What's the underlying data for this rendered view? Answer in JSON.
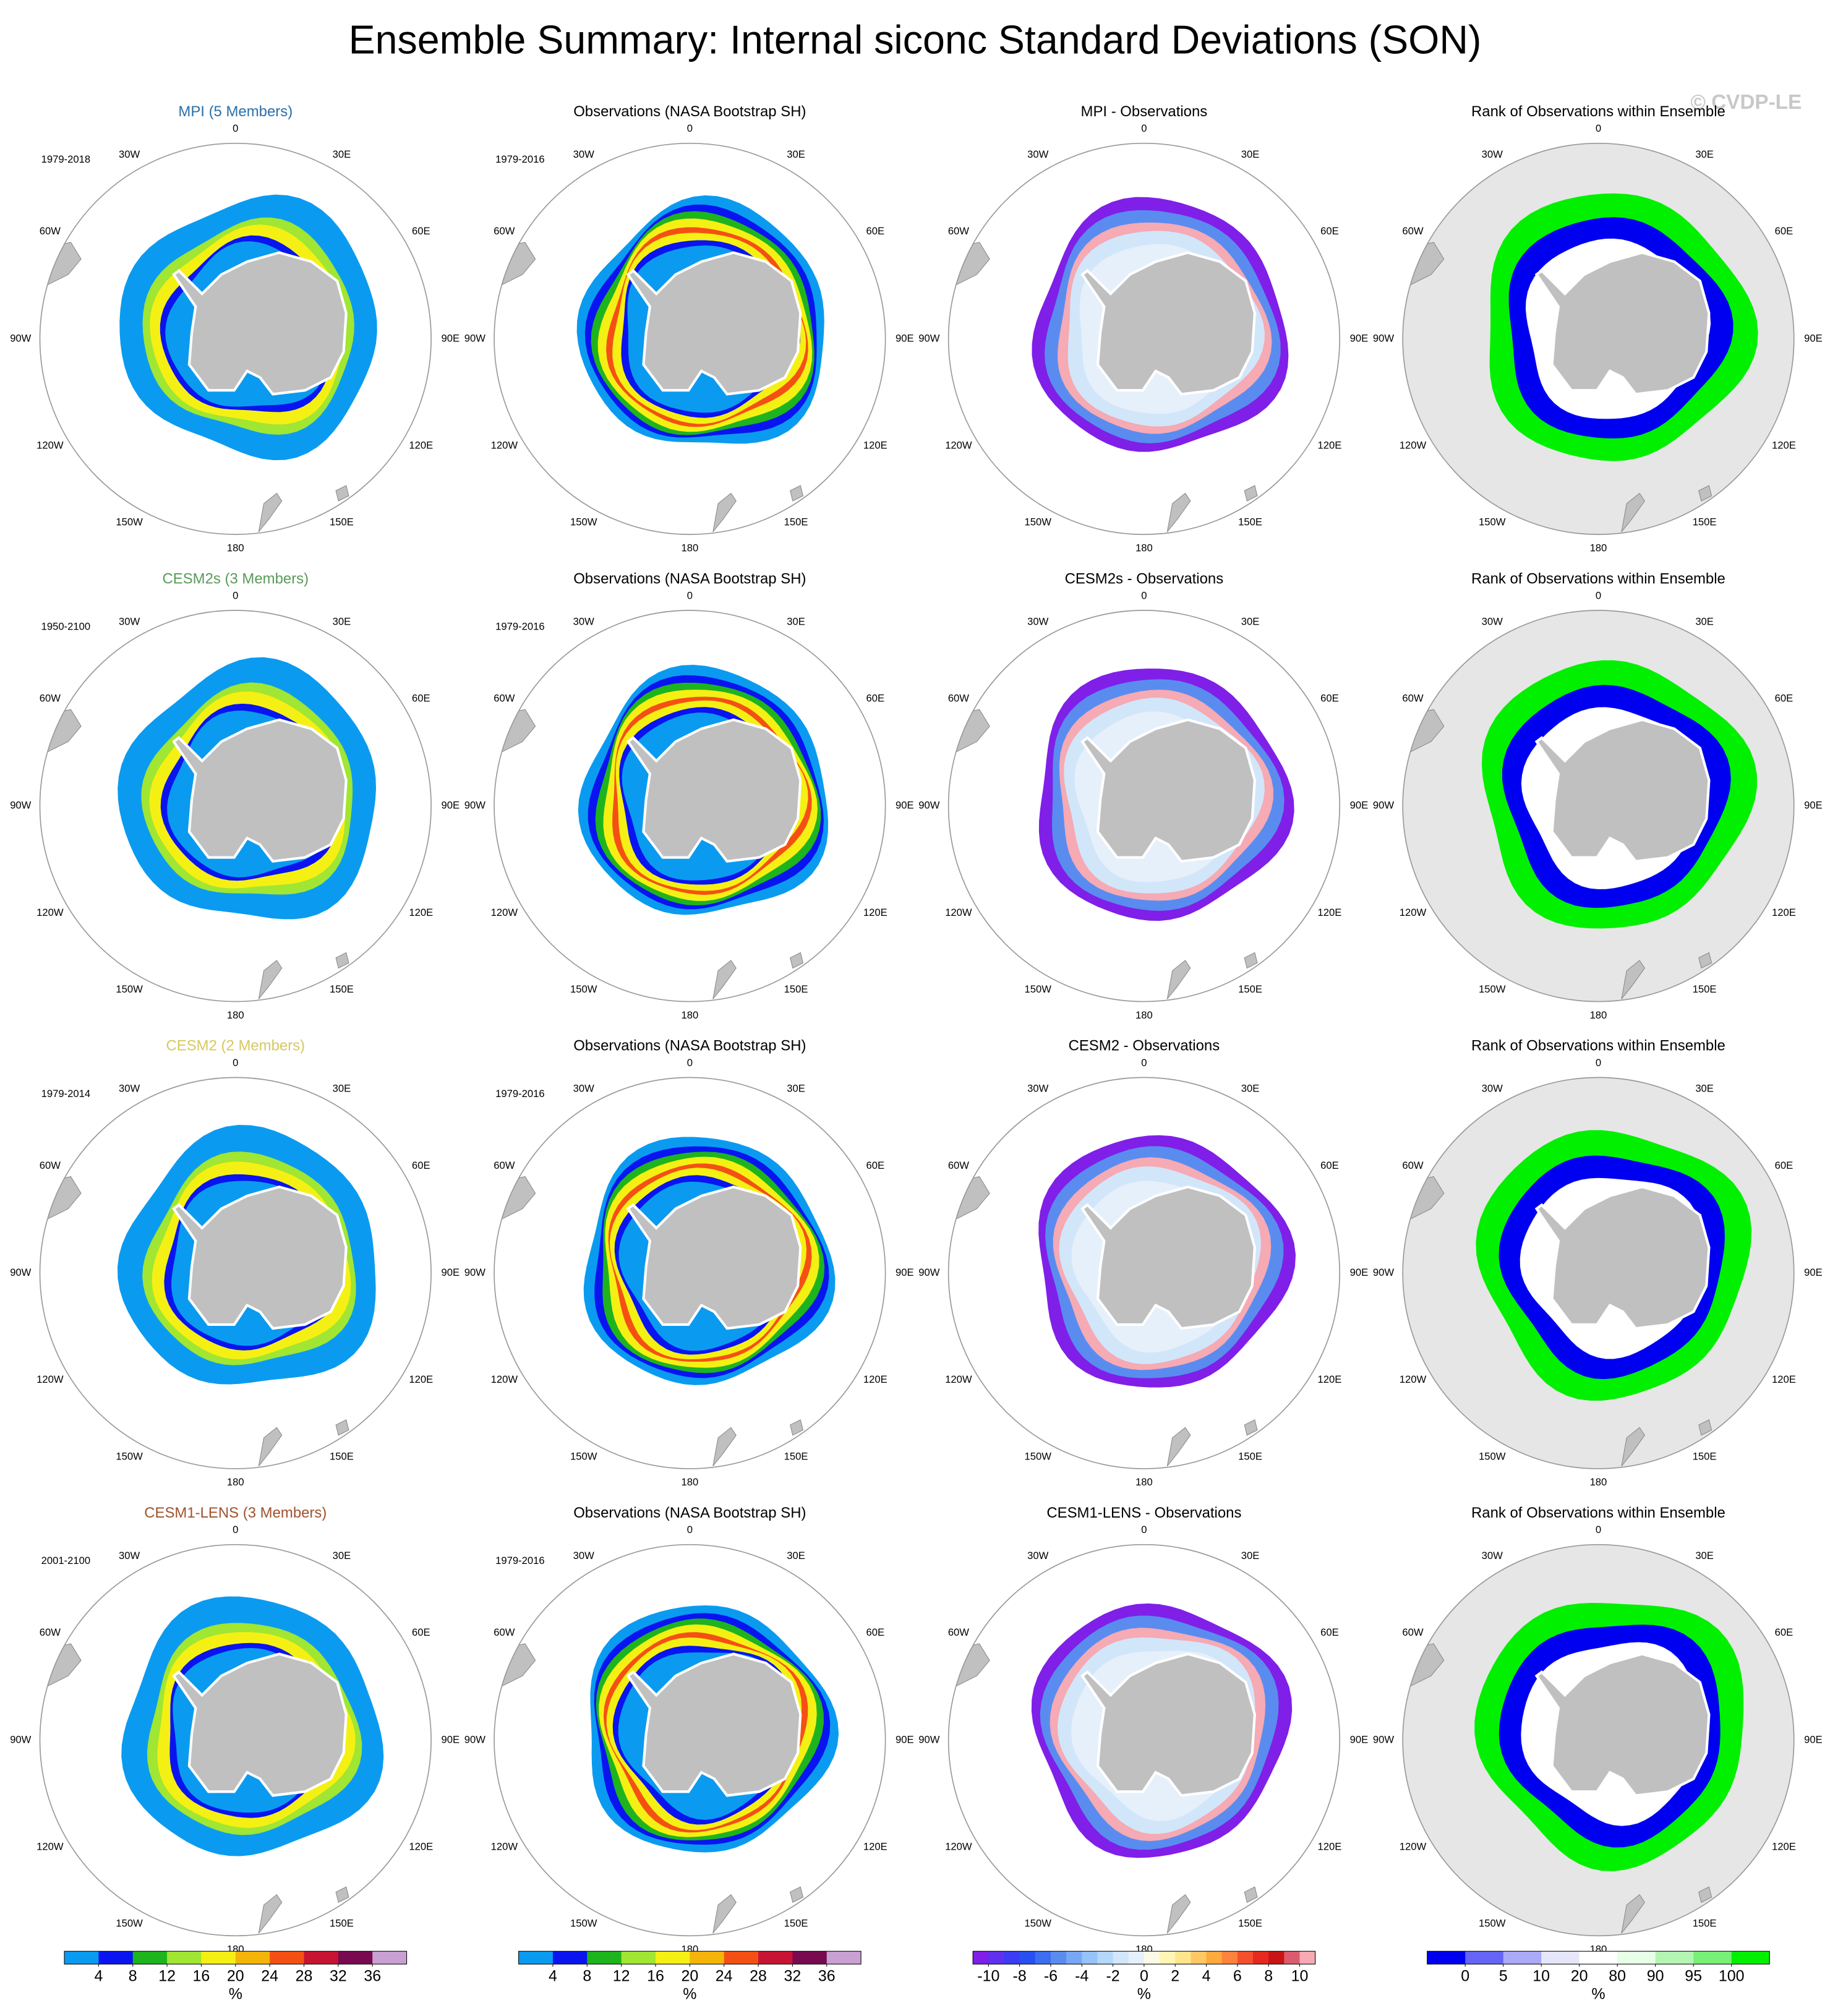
{
  "title": "Ensemble Summary: Internal siconc Standard Deviations (SON)",
  "watermark": "© CVDP-LE",
  "longitude_labels": [
    "0",
    "30E",
    "60E",
    "90E",
    "120E",
    "150E",
    "180",
    "150W",
    "120W",
    "90W",
    "60W",
    "30W"
  ],
  "rows": [
    {
      "model": {
        "title": "MPI (5 Members)",
        "color": "#2a6fa8",
        "period": "1979-2018"
      },
      "observations": {
        "title": "Observations (NASA Bootstrap SH)",
        "period": "1979-2016"
      },
      "difference": {
        "title": "MPI - Observations"
      },
      "rank": {
        "title": "Rank of Observations within Ensemble"
      }
    },
    {
      "model": {
        "title": "CESM2s (3 Members)",
        "color": "#5a9a5a",
        "period": "1950-2100"
      },
      "observations": {
        "title": "Observations (NASA Bootstrap SH)",
        "period": "1979-2016"
      },
      "difference": {
        "title": "CESM2s - Observations"
      },
      "rank": {
        "title": "Rank of Observations within Ensemble"
      }
    },
    {
      "model": {
        "title": "CESM2 (2 Members)",
        "color": "#d8c860",
        "period": "1979-2014"
      },
      "observations": {
        "title": "Observations (NASA Bootstrap SH)",
        "period": "1979-2016"
      },
      "difference": {
        "title": "CESM2 - Observations"
      },
      "rank": {
        "title": "Rank of Observations within Ensemble"
      }
    },
    {
      "model": {
        "title": "CESM1-LENS (3 Members)",
        "color": "#a0522d",
        "period": "2001-2100"
      },
      "observations": {
        "title": "Observations (NASA Bootstrap SH)",
        "period": "1979-2016"
      },
      "difference": {
        "title": "CESM1-LENS - Observations"
      },
      "rank": {
        "title": "Rank of Observations within Ensemble"
      }
    }
  ],
  "colorbars": [
    {
      "ticks": [
        4,
        8,
        12,
        16,
        20,
        24,
        28,
        32,
        36
      ],
      "unit": "%",
      "colors": [
        "#0a9bf0",
        "#0a14f0",
        "#1eb41e",
        "#a0e632",
        "#f5f014",
        "#f5b40a",
        "#f55014",
        "#c81432",
        "#780a50",
        "#c8a0d2"
      ]
    },
    {
      "ticks": [
        4,
        8,
        12,
        16,
        20,
        24,
        28,
        32,
        36
      ],
      "unit": "%",
      "colors": [
        "#0a9bf0",
        "#0a14f0",
        "#1eb41e",
        "#a0e632",
        "#f5f014",
        "#f5b40a",
        "#f55014",
        "#c81432",
        "#780a50",
        "#c8a0d2"
      ]
    },
    {
      "ticks": [
        -10,
        -8,
        -6,
        -4,
        -2,
        0,
        2,
        4,
        6,
        8,
        10
      ],
      "unit": "%",
      "colors": [
        "#7f1fe8",
        "#6030f0",
        "#3c3cf5",
        "#2850f0",
        "#3c6ef0",
        "#5a8cf0",
        "#78a8f5",
        "#96c3fa",
        "#b4d7fa",
        "#d2e6fa",
        "#e6f0fa",
        "#fafae6",
        "#fff5b4",
        "#ffe68c",
        "#ffc864",
        "#ffaa3c",
        "#ff823c",
        "#f5502d",
        "#e6281e",
        "#c81414",
        "#dc5a6e",
        "#f5aab4"
      ]
    },
    {
      "ticks": [
        0,
        5,
        10,
        20,
        80,
        90,
        95,
        100
      ],
      "unit": "%",
      "colors": [
        "#0000f0",
        "#6464f5",
        "#aaaaf8",
        "#e6e6fa",
        "#ffffff",
        "#e6ffe6",
        "#b4f5b4",
        "#78f078",
        "#00f000"
      ]
    }
  ]
}
